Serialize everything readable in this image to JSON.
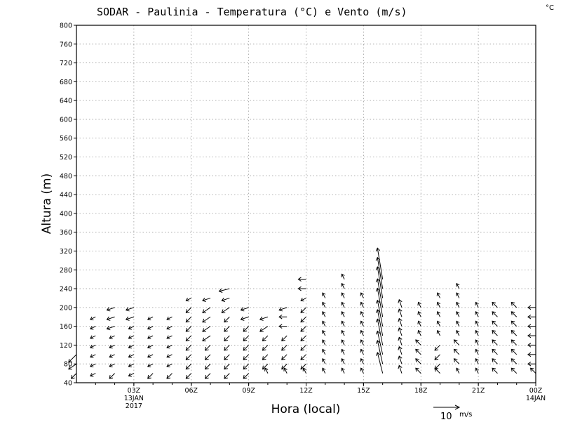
{
  "chart_data": {
    "type": "vector_field",
    "title": "SODAR - Paulinia - Temperatura (°C) e Vento (m/s)",
    "corner_label": "°C",
    "xlabel": "Hora (local)",
    "ylabel": "Altura (m)",
    "ylim": [
      40,
      800
    ],
    "yticks": [
      40,
      80,
      120,
      160,
      200,
      240,
      280,
      320,
      360,
      400,
      440,
      480,
      520,
      560,
      600,
      640,
      680,
      720,
      760,
      800
    ],
    "xlim": [
      0,
      24
    ],
    "xticks": [
      {
        "hour": 3,
        "label": "03Z",
        "sub1": "13JAN",
        "sub2": "2017"
      },
      {
        "hour": 6,
        "label": "06Z",
        "sub1": "",
        "sub2": ""
      },
      {
        "hour": 9,
        "label": "09Z",
        "sub1": "",
        "sub2": ""
      },
      {
        "hour": 12,
        "label": "12Z",
        "sub1": "",
        "sub2": ""
      },
      {
        "hour": 15,
        "label": "15Z",
        "sub1": "",
        "sub2": ""
      },
      {
        "hour": 18,
        "label": "18Z",
        "sub1": "",
        "sub2": ""
      },
      {
        "hour": 21,
        "label": "21Z",
        "sub1": "",
        "sub2": ""
      },
      {
        "hour": 24,
        "label": "00Z",
        "sub1": "14JAN",
        "sub2": ""
      }
    ],
    "grid": true,
    "reference_vector": {
      "value": 10,
      "unit": "m/s",
      "label": "10",
      "unit_label": "m/s"
    },
    "heights": [
      60,
      80,
      100,
      120,
      140,
      160,
      180,
      200,
      220,
      240,
      260
    ],
    "wind": [
      {
        "hour": 0,
        "levels": [
          [
            -2,
            -2
          ],
          [
            -3,
            -2
          ],
          [
            -3,
            -3
          ],
          null,
          null,
          null,
          null,
          null,
          null,
          null,
          null
        ]
      },
      {
        "hour": 1,
        "levels": [
          [
            -2,
            -1
          ],
          [
            -2,
            -1
          ],
          [
            -2,
            -1
          ],
          [
            -2,
            -1
          ],
          [
            -2,
            -1
          ],
          [
            -2,
            -1
          ],
          [
            -2,
            -1
          ],
          null,
          null,
          null,
          null
        ]
      },
      {
        "hour": 2,
        "levels": [
          [
            -2,
            -2
          ],
          [
            -2,
            -1
          ],
          [
            -2,
            -1
          ],
          [
            -2,
            -1
          ],
          [
            -2,
            -1
          ],
          [
            -3,
            -1
          ],
          [
            -3,
            -1
          ],
          [
            -3,
            -1
          ],
          null,
          null,
          null
        ]
      },
      {
        "hour": 3,
        "levels": [
          [
            -2,
            -1
          ],
          [
            -2,
            -1
          ],
          [
            -2,
            -1
          ],
          [
            -2,
            -1
          ],
          [
            -2,
            -1
          ],
          [
            -2,
            -1
          ],
          [
            -3,
            -1
          ],
          [
            -3,
            -1
          ],
          null,
          null,
          null
        ]
      },
      {
        "hour": 4,
        "levels": [
          [
            -2,
            -2
          ],
          [
            -2,
            -1
          ],
          [
            -2,
            -1
          ],
          [
            -2,
            -1
          ],
          [
            -2,
            -1
          ],
          [
            -2,
            -1
          ],
          [
            -2,
            -1
          ],
          null,
          null,
          null,
          null
        ]
      },
      {
        "hour": 5,
        "levels": [
          [
            -2,
            -2
          ],
          [
            -2,
            -1
          ],
          [
            -2,
            -1
          ],
          [
            -2,
            -1
          ],
          [
            -2,
            -1
          ],
          [
            -2,
            -1
          ],
          [
            -2,
            -1
          ],
          null,
          null,
          null,
          null
        ]
      },
      {
        "hour": 6,
        "levels": [
          [
            -2,
            -2
          ],
          [
            -2,
            -2
          ],
          [
            -2,
            -2
          ],
          [
            -2,
            -2
          ],
          [
            -2,
            -2
          ],
          [
            -2,
            -2
          ],
          [
            -2,
            -2
          ],
          [
            -2,
            -2
          ],
          [
            -2,
            -1
          ],
          null,
          null
        ]
      },
      {
        "hour": 7,
        "levels": [
          [
            -2,
            -2
          ],
          [
            -2,
            -2
          ],
          [
            -2,
            -2
          ],
          [
            -2,
            -2
          ],
          [
            -3,
            -2
          ],
          [
            -3,
            -2
          ],
          [
            -3,
            -2
          ],
          [
            -3,
            -2
          ],
          [
            -3,
            -1
          ],
          null,
          null
        ]
      },
      {
        "hour": 8,
        "levels": [
          [
            -2,
            -2
          ],
          [
            -2,
            -2
          ],
          [
            -2,
            -2
          ],
          [
            -2,
            -2
          ],
          [
            -2,
            -2
          ],
          [
            -2,
            -2
          ],
          [
            -2,
            -2
          ],
          [
            -3,
            -2
          ],
          [
            -3,
            -1
          ],
          [
            -4,
            -1
          ],
          null
        ]
      },
      {
        "hour": 9,
        "levels": [
          [
            -2,
            -2
          ],
          [
            -2,
            -2
          ],
          [
            -2,
            -2
          ],
          [
            -2,
            -2
          ],
          [
            -2,
            -2
          ],
          [
            -2,
            -2
          ],
          [
            -3,
            -1
          ],
          [
            -3,
            -1
          ],
          null,
          null,
          null
        ]
      },
      {
        "hour": 10,
        "levels": [
          [
            -1,
            2
          ],
          [
            -2,
            -2
          ],
          [
            -2,
            -2
          ],
          [
            -2,
            -2
          ],
          [
            -2,
            -2
          ],
          [
            -3,
            -2
          ],
          [
            -3,
            -1
          ],
          null,
          null,
          null,
          null
        ]
      },
      {
        "hour": 11,
        "levels": [
          [
            -1,
            2
          ],
          [
            -2,
            -2
          ],
          [
            -2,
            -2
          ],
          [
            -2,
            -2
          ],
          [
            -2,
            -2
          ],
          [
            -3,
            0
          ],
          [
            -3,
            0
          ],
          [
            -3,
            -1
          ],
          null,
          null,
          null
        ]
      },
      {
        "hour": 12,
        "levels": [
          [
            -1,
            2
          ],
          [
            -2,
            -2
          ],
          [
            -2,
            -2
          ],
          [
            -2,
            -2
          ],
          [
            -2,
            -2
          ],
          [
            -2,
            -2
          ],
          [
            -2,
            -2
          ],
          [
            -2,
            -2
          ],
          [
            -2,
            -1
          ],
          [
            -3,
            0
          ],
          [
            -3,
            0
          ]
        ]
      },
      {
        "hour": 13,
        "levels": [
          [
            -1,
            2
          ],
          [
            -1,
            2
          ],
          [
            -1,
            2
          ],
          [
            -1,
            2
          ],
          [
            -1,
            2
          ],
          [
            -1,
            2
          ],
          [
            -1,
            2
          ],
          [
            -1,
            2
          ],
          [
            -1,
            2
          ],
          null,
          null
        ]
      },
      {
        "hour": 14,
        "levels": [
          [
            -1,
            2
          ],
          [
            -1,
            2
          ],
          [
            -1,
            2
          ],
          [
            -1,
            2
          ],
          [
            -1,
            2
          ],
          [
            -1,
            2
          ],
          [
            -1,
            2
          ],
          [
            -1,
            2
          ],
          [
            -1,
            2
          ],
          [
            -1,
            2
          ],
          [
            -1,
            2
          ]
        ]
      },
      {
        "hour": 15,
        "levels": [
          [
            -1,
            2
          ],
          [
            -1,
            2
          ],
          [
            -1,
            2
          ],
          [
            -1,
            2
          ],
          [
            -1,
            2
          ],
          [
            -1,
            2
          ],
          [
            -1,
            2
          ],
          [
            -1,
            2
          ],
          [
            -1,
            2
          ],
          null,
          null
        ]
      },
      {
        "hour": 16,
        "levels": [
          [
            -2,
            8
          ],
          [
            -2,
            9
          ],
          [
            -2,
            9
          ],
          [
            -2,
            10
          ],
          [
            -2,
            10
          ],
          [
            -2,
            10
          ],
          [
            -2,
            11
          ],
          [
            -2,
            11
          ],
          [
            -2,
            12
          ],
          [
            -2,
            12
          ],
          [
            -2,
            12
          ]
        ]
      },
      {
        "hour": 17,
        "levels": [
          [
            -1,
            3
          ],
          [
            -1,
            3
          ],
          [
            -1,
            3
          ],
          [
            -1,
            3
          ],
          [
            -1,
            3
          ],
          [
            -1,
            3
          ],
          [
            -1,
            3
          ],
          [
            -1,
            3
          ],
          null,
          null,
          null
        ]
      },
      {
        "hour": 18,
        "levels": [
          [
            -2,
            2
          ],
          [
            -2,
            2
          ],
          [
            -2,
            2
          ],
          [
            -2,
            2
          ],
          [
            -1,
            2
          ],
          [
            -1,
            2
          ],
          [
            -1,
            2
          ],
          [
            -1,
            2
          ],
          null,
          null,
          null
        ]
      },
      {
        "hour": 19,
        "levels": [
          [
            -2,
            2
          ],
          [
            -2,
            -2
          ],
          [
            -2,
            -2
          ],
          [
            -2,
            -2
          ],
          [
            -1,
            2
          ],
          [
            -1,
            2
          ],
          [
            -1,
            2
          ],
          [
            -1,
            2
          ],
          [
            -1,
            2
          ],
          null,
          null
        ]
      },
      {
        "hour": 20,
        "levels": [
          [
            -1,
            2
          ],
          [
            -2,
            2
          ],
          [
            -2,
            2
          ],
          [
            -2,
            2
          ],
          [
            -1,
            2
          ],
          [
            -1,
            2
          ],
          [
            -1,
            2
          ],
          [
            -1,
            2
          ],
          [
            -1,
            2
          ],
          [
            -1,
            2
          ],
          null
        ]
      },
      {
        "hour": 21,
        "levels": [
          [
            -1,
            2
          ],
          [
            -1,
            2
          ],
          [
            -1,
            2
          ],
          [
            -1,
            2
          ],
          [
            -1,
            2
          ],
          [
            -1,
            2
          ],
          [
            -1,
            2
          ],
          [
            -1,
            2
          ],
          null,
          null,
          null
        ]
      },
      {
        "hour": 22,
        "levels": [
          [
            -2,
            2
          ],
          [
            -2,
            2
          ],
          [
            -2,
            2
          ],
          [
            -2,
            2
          ],
          [
            -2,
            2
          ],
          [
            -2,
            2
          ],
          [
            -2,
            2
          ],
          [
            -2,
            2
          ],
          null,
          null,
          null
        ]
      },
      {
        "hour": 23,
        "levels": [
          [
            -2,
            2
          ],
          [
            -2,
            2
          ],
          [
            -2,
            2
          ],
          [
            -2,
            2
          ],
          [
            -2,
            2
          ],
          [
            -2,
            2
          ],
          [
            -2,
            2
          ],
          [
            -2,
            2
          ],
          null,
          null,
          null
        ]
      },
      {
        "hour": 24,
        "levels": [
          [
            -2,
            2
          ],
          [
            -3,
            0
          ],
          [
            -3,
            0
          ],
          [
            -3,
            0
          ],
          [
            -3,
            0
          ],
          [
            -3,
            0
          ],
          [
            -3,
            0
          ],
          [
            -3,
            0
          ],
          null,
          null,
          null
        ]
      }
    ]
  }
}
